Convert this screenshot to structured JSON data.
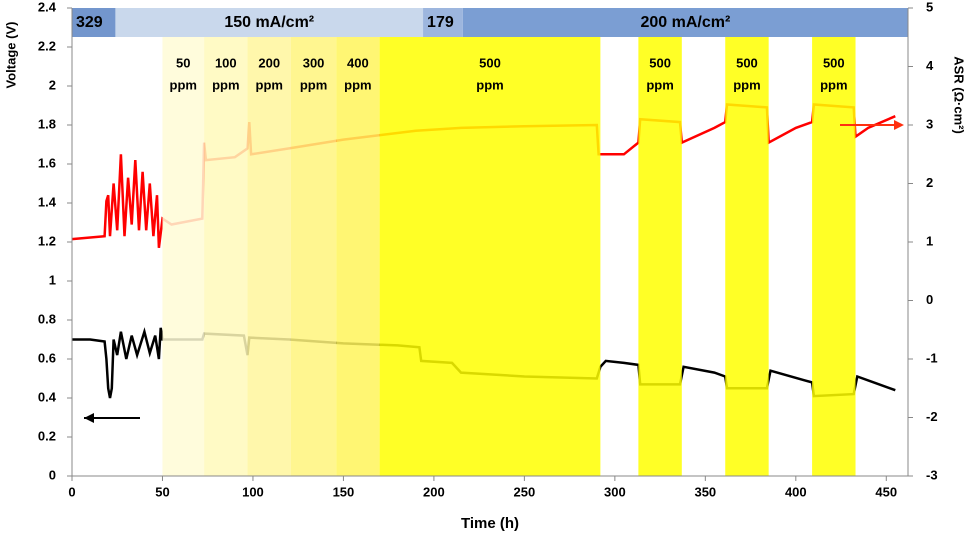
{
  "chart_data": {
    "type": "line",
    "xlabel": "Time (h)",
    "ylabel": "Voltage (V)",
    "y2label": "ASR (Ω·cm²)",
    "xlim": [
      0,
      462
    ],
    "xticks": [
      0,
      50,
      100,
      150,
      200,
      250,
      300,
      350,
      400,
      450
    ],
    "ylim": [
      0,
      2.4
    ],
    "yticks": [
      0,
      0.2,
      0.4,
      0.6,
      0.8,
      1,
      1.2,
      1.4,
      1.6,
      1.8,
      2,
      2.2,
      2.4
    ],
    "y2lim": [
      -3,
      5
    ],
    "y2ticks": [
      -3,
      -2,
      -1,
      0,
      1,
      2,
      3,
      4,
      5
    ],
    "current_bands": [
      {
        "label": "329",
        "start": 0,
        "end": 24,
        "color": "#7396cd"
      },
      {
        "label": "150 mA/cm²",
        "start": 24,
        "end": 194,
        "color": "#c9d8ec"
      },
      {
        "label": "179",
        "start": 194,
        "end": 216,
        "color": "#9db6de"
      },
      {
        "label": "200   mA/cm²",
        "start": 216,
        "end": 462,
        "color": "#7b9ed3"
      }
    ],
    "regions": [
      {
        "label": [
          "50",
          "ppm"
        ],
        "start": 50,
        "end": 73,
        "color": "#fffbd6"
      },
      {
        "label": [
          "100",
          "ppm"
        ],
        "start": 73,
        "end": 97,
        "color": "#fff9bb"
      },
      {
        "label": [
          "200",
          "ppm"
        ],
        "start": 97,
        "end": 121,
        "color": "#fff69c"
      },
      {
        "label": [
          "300",
          "ppm"
        ],
        "start": 121,
        "end": 146,
        "color": "#fff47c"
      },
      {
        "label": [
          "400",
          "ppm"
        ],
        "start": 146,
        "end": 170,
        "color": "#fff55a"
      },
      {
        "label": [
          "500",
          "ppm"
        ],
        "start": 170,
        "end": 292,
        "color": "#ffff00"
      },
      {
        "label": [
          "500",
          "ppm"
        ],
        "start": 313,
        "end": 337,
        "color": "#ffff00"
      },
      {
        "label": [
          "500",
          "ppm"
        ],
        "start": 361,
        "end": 385,
        "color": "#ffff00"
      },
      {
        "label": [
          "500",
          "ppm"
        ],
        "start": 409,
        "end": 433,
        "color": "#ffff00"
      }
    ],
    "series": [
      {
        "color": "#000000",
        "axis": "y",
        "x": [
          0,
          10,
          18,
          19,
          20,
          21,
          22,
          23,
          25,
          27,
          30,
          33,
          36,
          40,
          43,
          46,
          48,
          49,
          50,
          60,
          72,
          73,
          95,
          97,
          98,
          120,
          150,
          180,
          192,
          193,
          210,
          215,
          250,
          290,
          292,
          295,
          305,
          313,
          314,
          336,
          338,
          355,
          361,
          362,
          384,
          386,
          405,
          409,
          410,
          432,
          434,
          455
        ],
        "values": [
          0.7,
          0.7,
          0.69,
          0.6,
          0.45,
          0.4,
          0.45,
          0.7,
          0.62,
          0.74,
          0.6,
          0.72,
          0.62,
          0.74,
          0.63,
          0.72,
          0.6,
          0.76,
          0.7,
          0.7,
          0.7,
          0.73,
          0.72,
          0.62,
          0.71,
          0.7,
          0.68,
          0.67,
          0.66,
          0.59,
          0.58,
          0.53,
          0.51,
          0.5,
          0.56,
          0.59,
          0.58,
          0.57,
          0.47,
          0.47,
          0.56,
          0.53,
          0.51,
          0.45,
          0.45,
          0.54,
          0.49,
          0.48,
          0.41,
          0.42,
          0.51,
          0.44
        ]
      },
      {
        "color": "#ff0000",
        "axis": "y2",
        "x": [
          0,
          18,
          19,
          20,
          21,
          23,
          25,
          27,
          29,
          31,
          33,
          35,
          37,
          39,
          41,
          43,
          45,
          47,
          48,
          50,
          55,
          72,
          73,
          74,
          90,
          97,
          98,
          99,
          120,
          150,
          190,
          215,
          250,
          290,
          291,
          305,
          313,
          314,
          336,
          337,
          355,
          361,
          362,
          384,
          385,
          400,
          409,
          410,
          432,
          433,
          440,
          455
        ],
        "values": [
          1.05,
          1.1,
          1.7,
          1.8,
          1.1,
          2.0,
          1.2,
          2.5,
          1.1,
          2.1,
          1.3,
          2.4,
          1.2,
          2.2,
          1.2,
          2.0,
          1.1,
          1.8,
          0.9,
          1.4,
          1.3,
          1.4,
          2.7,
          2.4,
          2.45,
          2.6,
          3.05,
          2.5,
          2.6,
          2.75,
          2.9,
          2.95,
          2.98,
          3.0,
          2.5,
          2.5,
          2.7,
          3.1,
          3.05,
          2.7,
          2.95,
          3.05,
          3.35,
          3.3,
          2.7,
          2.95,
          3.05,
          3.35,
          3.3,
          2.8,
          2.95,
          3.15
        ]
      }
    ]
  }
}
